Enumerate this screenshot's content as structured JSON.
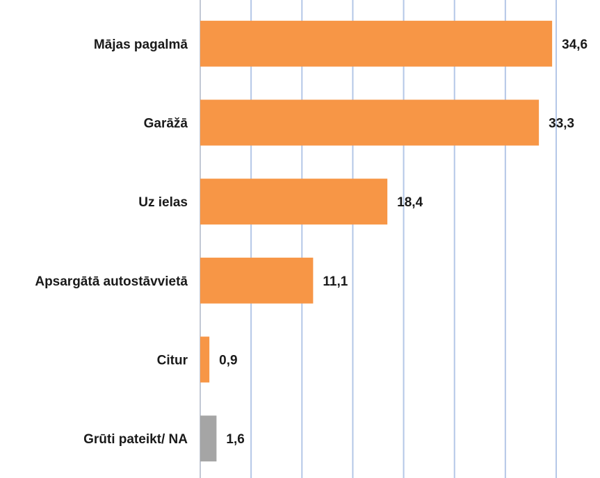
{
  "chart_data": {
    "type": "barh",
    "categories": [
      "Mājas pagalmā",
      "Garāžā",
      "Uz ielas",
      "Apsargātā autostāvvietā",
      "Citur",
      "Grūti pateikt/ NA"
    ],
    "values": [
      34.6,
      33.3,
      18.4,
      11.1,
      0.9,
      1.6
    ],
    "value_labels": [
      "34,6",
      "33,3",
      "18,4",
      "11,1",
      "0,9",
      "1,6"
    ],
    "colors": [
      "#f79646",
      "#f79646",
      "#f79646",
      "#f79646",
      "#f79646",
      "#a5a5a5"
    ],
    "xlim": [
      0,
      35
    ],
    "xticks": [
      0,
      5,
      10,
      15,
      20,
      25,
      30,
      35
    ],
    "grid": true
  }
}
